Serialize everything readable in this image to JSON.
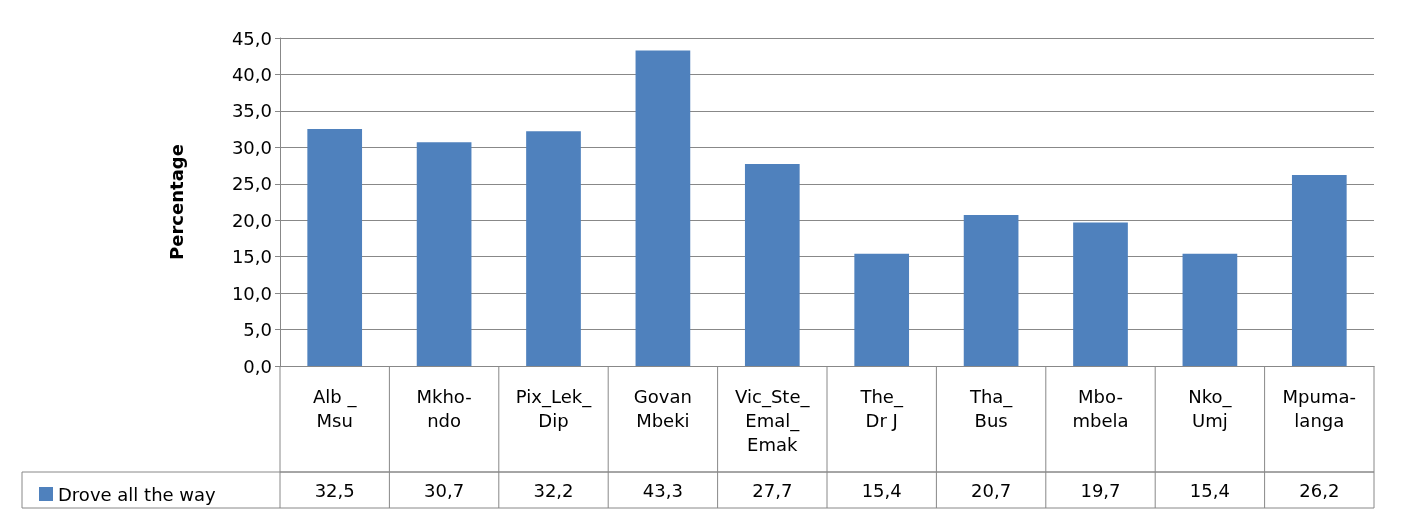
{
  "chart_data": {
    "type": "bar",
    "ylabel": "Percentage",
    "categories": [
      "Alb _\nMsu",
      "Mkho-\nndo",
      "Pix_Lek_\nDip",
      "Govan\nMbeki",
      "Vic_Ste_\nEmal_\nEmak",
      "The_\nDr J",
      "Tha_\nBus",
      "Mbo-\nmbela",
      "Nko_\nUmj",
      "Mpuma-\nlanga"
    ],
    "series": [
      {
        "name": "Drove all the way",
        "color": "#4f81bd",
        "values": [
          32.5,
          30.7,
          32.2,
          43.3,
          27.7,
          15.4,
          20.7,
          19.7,
          15.4,
          26.2
        ],
        "value_labels": [
          "32,5",
          "30,7",
          "32,2",
          "43,3",
          "27,7",
          "15,4",
          "20,7",
          "19,7",
          "15,4",
          "26,2"
        ]
      }
    ],
    "ylim": [
      0,
      45
    ],
    "yticks": [
      {
        "value": 0,
        "label": "0,0"
      },
      {
        "value": 5,
        "label": "5,0"
      },
      {
        "value": 10,
        "label": "10,0"
      },
      {
        "value": 15,
        "label": "15,0"
      },
      {
        "value": 20,
        "label": "20,0"
      },
      {
        "value": 25,
        "label": "25,0"
      },
      {
        "value": 30,
        "label": "30,0"
      },
      {
        "value": 35,
        "label": "35,0"
      },
      {
        "value": 40,
        "label": "40,0"
      },
      {
        "value": 45,
        "label": "45,0"
      }
    ],
    "grid": "y",
    "legend": "bottom"
  }
}
